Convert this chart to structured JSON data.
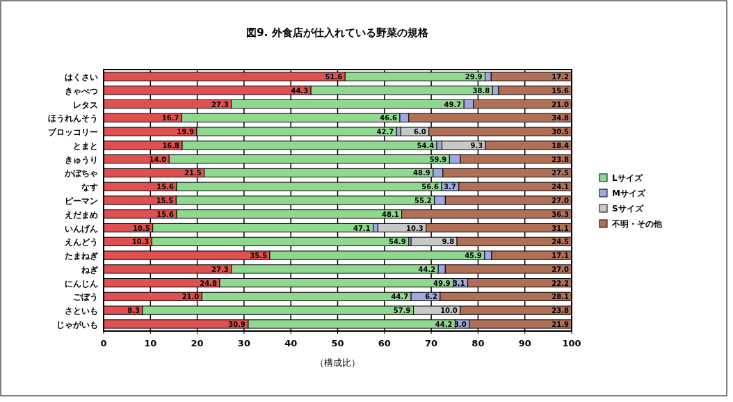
{
  "chart_data": {
    "type": "bar",
    "orientation": "horizontal",
    "stacked": true,
    "title": "図9. 外食店が仕入れている野菜の規格",
    "xlabel": "（構成比）",
    "categories": [
      "はくさい",
      "きゃべつ",
      "レタス",
      "ほうれんそう",
      "ブロッコリー",
      "とまと",
      "きゅうり",
      "かぼちゃ",
      "なす",
      "ピーマン",
      "えだまめ",
      "いんげん",
      "えんどう",
      "たまねぎ",
      "ねぎ",
      "にんじん",
      "ごぼう",
      "さといも",
      "じゃがいも"
    ],
    "series": [
      {
        "color": "#e05050",
        "values": [
          51.6,
          44.3,
          27.3,
          16.7,
          19.9,
          16.8,
          14.0,
          21.5,
          15.6,
          15.5,
          15.6,
          10.5,
          10.3,
          35.5,
          27.3,
          24.8,
          21.0,
          8.3,
          30.9
        ],
        "value_labels": [
          "51.6",
          "44.3",
          "27.3",
          "16.7",
          "19.9",
          "16.8",
          "14.0",
          "21.5",
          "15.6",
          "15.5",
          "15.6",
          "10.5",
          "10.3",
          "35.5",
          "27.3",
          "24.8",
          "21.0",
          "8.3",
          "30.9"
        ]
      },
      {
        "name": "Lサイズ",
        "color": "#90d890",
        "values": [
          29.9,
          38.8,
          49.7,
          46.6,
          42.7,
          54.4,
          59.9,
          48.9,
          56.6,
          55.2,
          48.1,
          47.1,
          54.9,
          45.9,
          44.2,
          49.9,
          44.7,
          57.9,
          44.2
        ],
        "value_labels": [
          "29.9",
          "38.8",
          "49.7",
          "46.6",
          "42.7",
          "54.4",
          "59.9",
          "48.9",
          "56.6",
          "55.2",
          "48.1",
          "47.1",
          "54.9",
          "45.9",
          "44.2",
          "49.9",
          "44.7",
          "57.9",
          "44.2"
        ]
      },
      {
        "name": "Mサイズ",
        "color": "#a0a8e0",
        "values": [
          1.3,
          1.3,
          2.0,
          1.9,
          0.9,
          1.1,
          2.3,
          2.1,
          3.7,
          2.3,
          0,
          1.0,
          0.5,
          1.5,
          1.5,
          3.1,
          6.2,
          0,
          3.0
        ],
        "value_labels": [
          null,
          null,
          null,
          null,
          null,
          null,
          null,
          null,
          "3.7",
          null,
          null,
          null,
          null,
          null,
          null,
          "3.1",
          "6.2",
          null,
          "3.0"
        ]
      },
      {
        "name": "Sサイズ",
        "color": "#c8c8c8",
        "values": [
          0,
          0,
          0,
          0,
          6.0,
          9.3,
          0,
          0,
          0,
          0,
          0,
          10.3,
          9.8,
          0,
          0,
          0,
          0,
          10.0,
          0
        ],
        "value_labels": [
          null,
          null,
          null,
          null,
          "6.0",
          "9.3",
          null,
          null,
          null,
          null,
          null,
          "10.3",
          "9.8",
          null,
          null,
          null,
          null,
          "10.0",
          null
        ]
      },
      {
        "name": "不明・その他",
        "color": "#b07058",
        "values": [
          17.2,
          15.6,
          21.0,
          34.8,
          30.5,
          18.4,
          23.8,
          27.5,
          24.1,
          27.0,
          36.3,
          31.1,
          24.5,
          17.1,
          27.0,
          22.2,
          28.1,
          23.8,
          21.9
        ],
        "value_labels": [
          "17.2",
          "15.6",
          "21.0",
          "34.8",
          "30.5",
          "18.4",
          "23.8",
          "27.5",
          "24.1",
          "27.0",
          "36.3",
          "31.1",
          "24.5",
          "17.1",
          "27.0",
          "22.2",
          "28.1",
          "23.8",
          "21.9"
        ]
      }
    ],
    "xlim": [
      0,
      100
    ],
    "xticks": [
      0,
      10,
      20,
      30,
      40,
      50,
      60,
      70,
      80,
      90,
      100
    ],
    "grid": "x",
    "legend": "right"
  }
}
